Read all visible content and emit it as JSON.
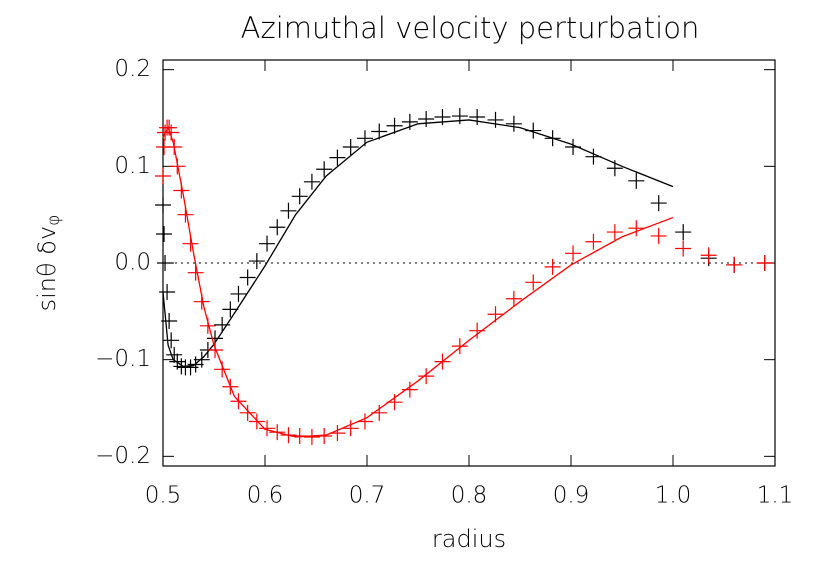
{
  "chart_data": {
    "type": "scatter",
    "title": "Azimuthal velocity perturbation",
    "xlabel": "radius",
    "ylabel": {
      "text": "sinθ  δv",
      "subscript": "φ"
    },
    "xlim": [
      0.5,
      1.1
    ],
    "ylim": [
      -0.21,
      0.21
    ],
    "xticks": [
      0.5,
      0.6,
      0.7,
      0.8,
      0.9,
      {
        "value": 1.0,
        "label": "1.0"
      },
      1.1
    ],
    "yticks": [
      {
        "value": -0.2,
        "label": "−0.2"
      },
      {
        "value": -0.1,
        "label": "−0.1"
      },
      {
        "value": 0,
        "label": "0.0"
      },
      0.1,
      0.2
    ],
    "reference_line": {
      "y": 0,
      "style": "dotted"
    },
    "series": [
      {
        "style": "cross",
        "color": "#000000",
        "x": [
          0.5,
          0.501,
          0.502,
          0.504,
          0.506,
          0.508,
          0.511,
          0.514,
          0.518,
          0.522,
          0.527,
          0.532,
          0.538,
          0.544,
          0.551,
          0.558,
          0.566,
          0.574,
          0.583,
          0.592,
          0.602,
          0.612,
          0.623,
          0.634,
          0.646,
          0.658,
          0.671,
          0.684,
          0.698,
          0.712,
          0.727,
          0.742,
          0.758,
          0.774,
          0.791,
          0.808,
          0.826,
          0.844,
          0.863,
          0.882,
          0.902,
          0.922,
          0.943,
          0.964,
          0.986,
          1.01,
          1.035,
          1.06,
          1.09
        ],
        "values": [
          0.06,
          0.03,
          0.0,
          -0.03,
          -0.06,
          -0.08,
          -0.095,
          -0.102,
          -0.107,
          -0.108,
          -0.108,
          -0.105,
          -0.1,
          -0.09,
          -0.078,
          -0.064,
          -0.048,
          -0.032,
          -0.015,
          0.002,
          0.02,
          0.037,
          0.054,
          0.069,
          0.084,
          0.097,
          0.109,
          0.12,
          0.129,
          0.136,
          0.142,
          0.146,
          0.149,
          0.151,
          0.152,
          0.151,
          0.148,
          0.144,
          0.137,
          0.129,
          0.12,
          0.11,
          0.098,
          0.085,
          0.062,
          0.032,
          0.005,
          -0.002,
          0.0
        ]
      },
      {
        "style": "line",
        "color": "#000000",
        "x": [
          0.5,
          0.505,
          0.51,
          0.52,
          0.53,
          0.54,
          0.55,
          0.57,
          0.6,
          0.63,
          0.66,
          0.7,
          0.75,
          0.8,
          0.85,
          0.9,
          0.95,
          1.0
        ],
        "values": [
          -0.03,
          -0.085,
          -0.1,
          -0.107,
          -0.106,
          -0.097,
          -0.084,
          -0.052,
          -0.003,
          0.05,
          0.09,
          0.125,
          0.144,
          0.148,
          0.14,
          0.123,
          0.1,
          0.079
        ]
      },
      {
        "style": "cross",
        "color": "#ff0000",
        "x": [
          0.5,
          0.501,
          0.502,
          0.504,
          0.506,
          0.508,
          0.511,
          0.514,
          0.518,
          0.522,
          0.527,
          0.532,
          0.538,
          0.544,
          0.551,
          0.558,
          0.566,
          0.574,
          0.583,
          0.592,
          0.602,
          0.612,
          0.623,
          0.634,
          0.646,
          0.658,
          0.671,
          0.684,
          0.698,
          0.712,
          0.727,
          0.742,
          0.758,
          0.774,
          0.791,
          0.808,
          0.826,
          0.844,
          0.863,
          0.882,
          0.902,
          0.922,
          0.943,
          0.964,
          0.986,
          1.01,
          1.035,
          1.06,
          1.09
        ],
        "values": [
          0.09,
          0.12,
          0.135,
          0.14,
          0.14,
          0.135,
          0.12,
          0.1,
          0.075,
          0.05,
          0.02,
          -0.01,
          -0.04,
          -0.065,
          -0.09,
          -0.11,
          -0.128,
          -0.143,
          -0.155,
          -0.164,
          -0.171,
          -0.175,
          -0.178,
          -0.179,
          -0.18,
          -0.179,
          -0.176,
          -0.171,
          -0.164,
          -0.155,
          -0.144,
          -0.131,
          -0.117,
          -0.102,
          -0.086,
          -0.07,
          -0.053,
          -0.037,
          -0.02,
          -0.004,
          0.01,
          0.022,
          0.032,
          0.036,
          0.028,
          0.015,
          0.008,
          -0.002,
          0.0
        ]
      },
      {
        "style": "line",
        "color": "#ff0000",
        "x": [
          0.5,
          0.505,
          0.51,
          0.52,
          0.53,
          0.54,
          0.55,
          0.57,
          0.6,
          0.63,
          0.66,
          0.7,
          0.75,
          0.8,
          0.85,
          0.9,
          0.95,
          1.0
        ],
        "values": [
          0.13,
          0.14,
          0.125,
          0.07,
          0.01,
          -0.045,
          -0.085,
          -0.138,
          -0.172,
          -0.18,
          -0.178,
          -0.16,
          -0.122,
          -0.08,
          -0.04,
          -0.002,
          0.027,
          0.047
        ]
      }
    ]
  }
}
